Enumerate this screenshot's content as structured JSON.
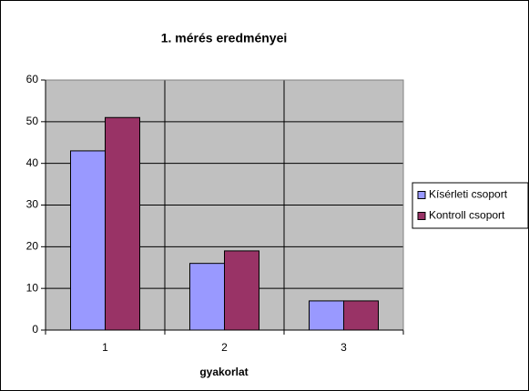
{
  "chart_data": {
    "type": "bar",
    "title": "1. mérés eredményei",
    "x_label": "gyakorlat",
    "categories": [
      "1",
      "2",
      "3"
    ],
    "series": [
      {
        "name": "Kísérleti csoport",
        "color": "#9999ff",
        "values": [
          43,
          16,
          7
        ]
      },
      {
        "name": "Kontroll csoport",
        "color": "#993366",
        "values": [
          51,
          19,
          7
        ]
      }
    ],
    "ylim": [
      0,
      60
    ],
    "yticks": [
      0,
      10,
      20,
      30,
      40,
      50,
      60
    ],
    "grid": true,
    "legend": "right"
  }
}
